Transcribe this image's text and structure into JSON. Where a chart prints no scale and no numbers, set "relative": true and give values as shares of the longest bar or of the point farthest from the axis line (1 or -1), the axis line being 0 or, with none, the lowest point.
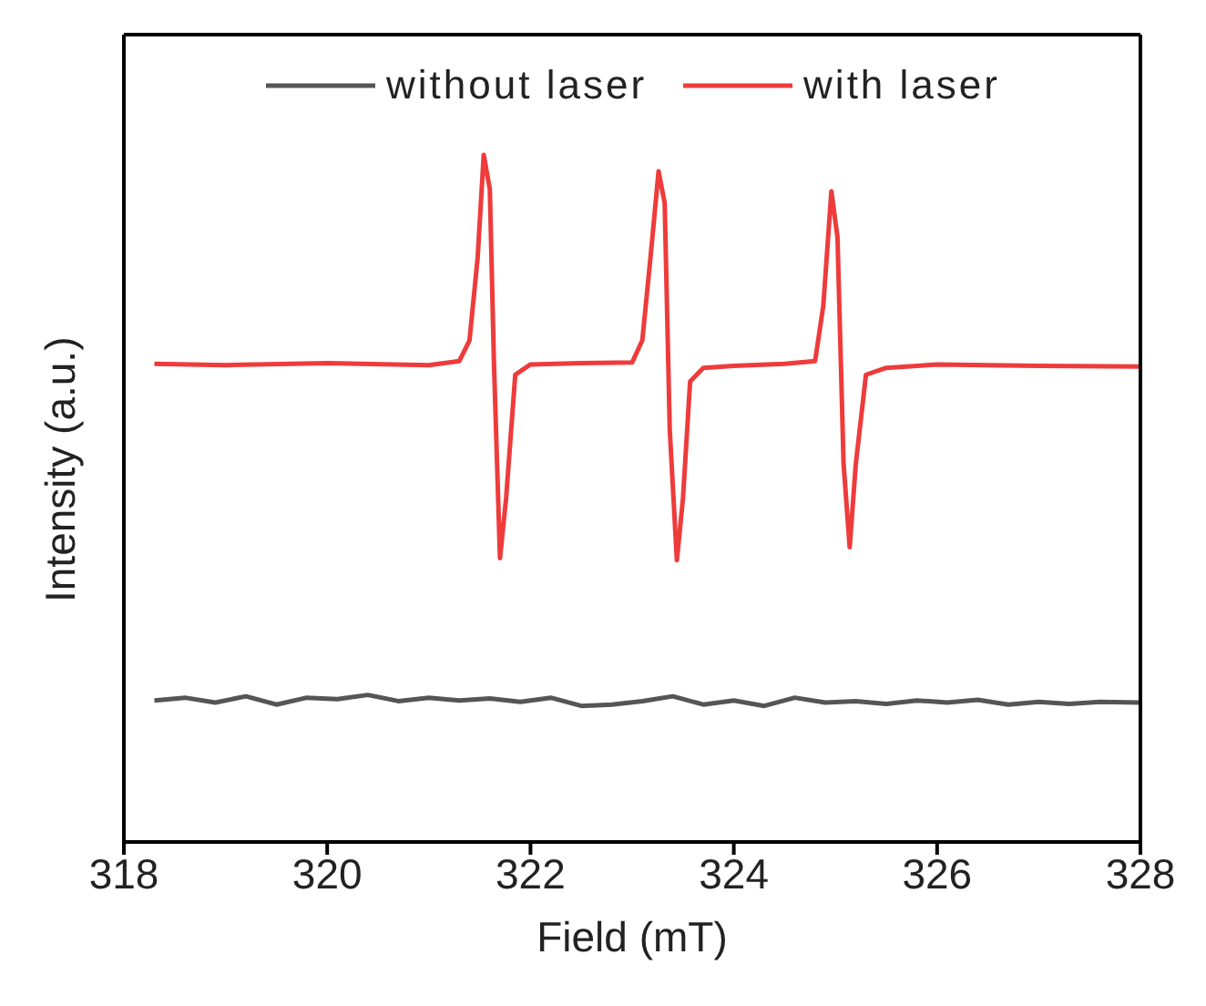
{
  "chart_data": {
    "type": "line",
    "xlabel": "Field (mT)",
    "ylabel": "Intensity (a.u.)",
    "relative": true,
    "xlim": [
      318,
      328
    ],
    "xticks": [
      318,
      320,
      322,
      324,
      326,
      328
    ],
    "legend": "top",
    "marker": "none",
    "line_style": "solid",
    "series": [
      {
        "name": "without laser",
        "color": "#555555",
        "x": [
          318.3,
          318.6,
          318.9,
          319.2,
          319.5,
          319.8,
          320.1,
          320.4,
          320.7,
          321.0,
          321.3,
          321.6,
          321.9,
          322.2,
          322.5,
          322.8,
          323.1,
          323.4,
          323.7,
          324.0,
          324.3,
          324.6,
          324.9,
          325.2,
          325.5,
          325.8,
          326.1,
          326.4,
          326.7,
          327.0,
          327.3,
          327.6,
          328.0
        ],
        "values": [
          0.206,
          0.21,
          0.203,
          0.212,
          0.2,
          0.21,
          0.208,
          0.214,
          0.205,
          0.21,
          0.206,
          0.209,
          0.204,
          0.21,
          0.198,
          0.2,
          0.205,
          0.212,
          0.2,
          0.206,
          0.198,
          0.21,
          0.203,
          0.205,
          0.201,
          0.206,
          0.203,
          0.207,
          0.2,
          0.204,
          0.201,
          0.204,
          0.203
        ]
      },
      {
        "name": "with laser",
        "color": "#ee3b3b",
        "x": [
          318.3,
          319,
          320,
          321,
          321.3,
          321.4,
          321.48,
          321.54,
          321.6,
          321.64,
          321.7,
          321.76,
          321.85,
          322,
          322.5,
          323,
          323.1,
          323.18,
          323.26,
          323.32,
          323.37,
          323.44,
          323.5,
          323.57,
          323.7,
          324,
          324.5,
          324.8,
          324.88,
          324.96,
          325.02,
          325.08,
          325.14,
          325.2,
          325.3,
          325.5,
          326,
          327,
          328
        ],
        "values": [
          0.696,
          0.694,
          0.697,
          0.694,
          0.7,
          0.73,
          0.85,
          1.0,
          0.95,
          0.7,
          0.413,
          0.5,
          0.68,
          0.695,
          0.697,
          0.698,
          0.73,
          0.85,
          0.976,
          0.93,
          0.6,
          0.41,
          0.5,
          0.67,
          0.69,
          0.693,
          0.696,
          0.7,
          0.78,
          0.947,
          0.88,
          0.55,
          0.429,
          0.55,
          0.68,
          0.69,
          0.695,
          0.693,
          0.692
        ]
      }
    ]
  }
}
